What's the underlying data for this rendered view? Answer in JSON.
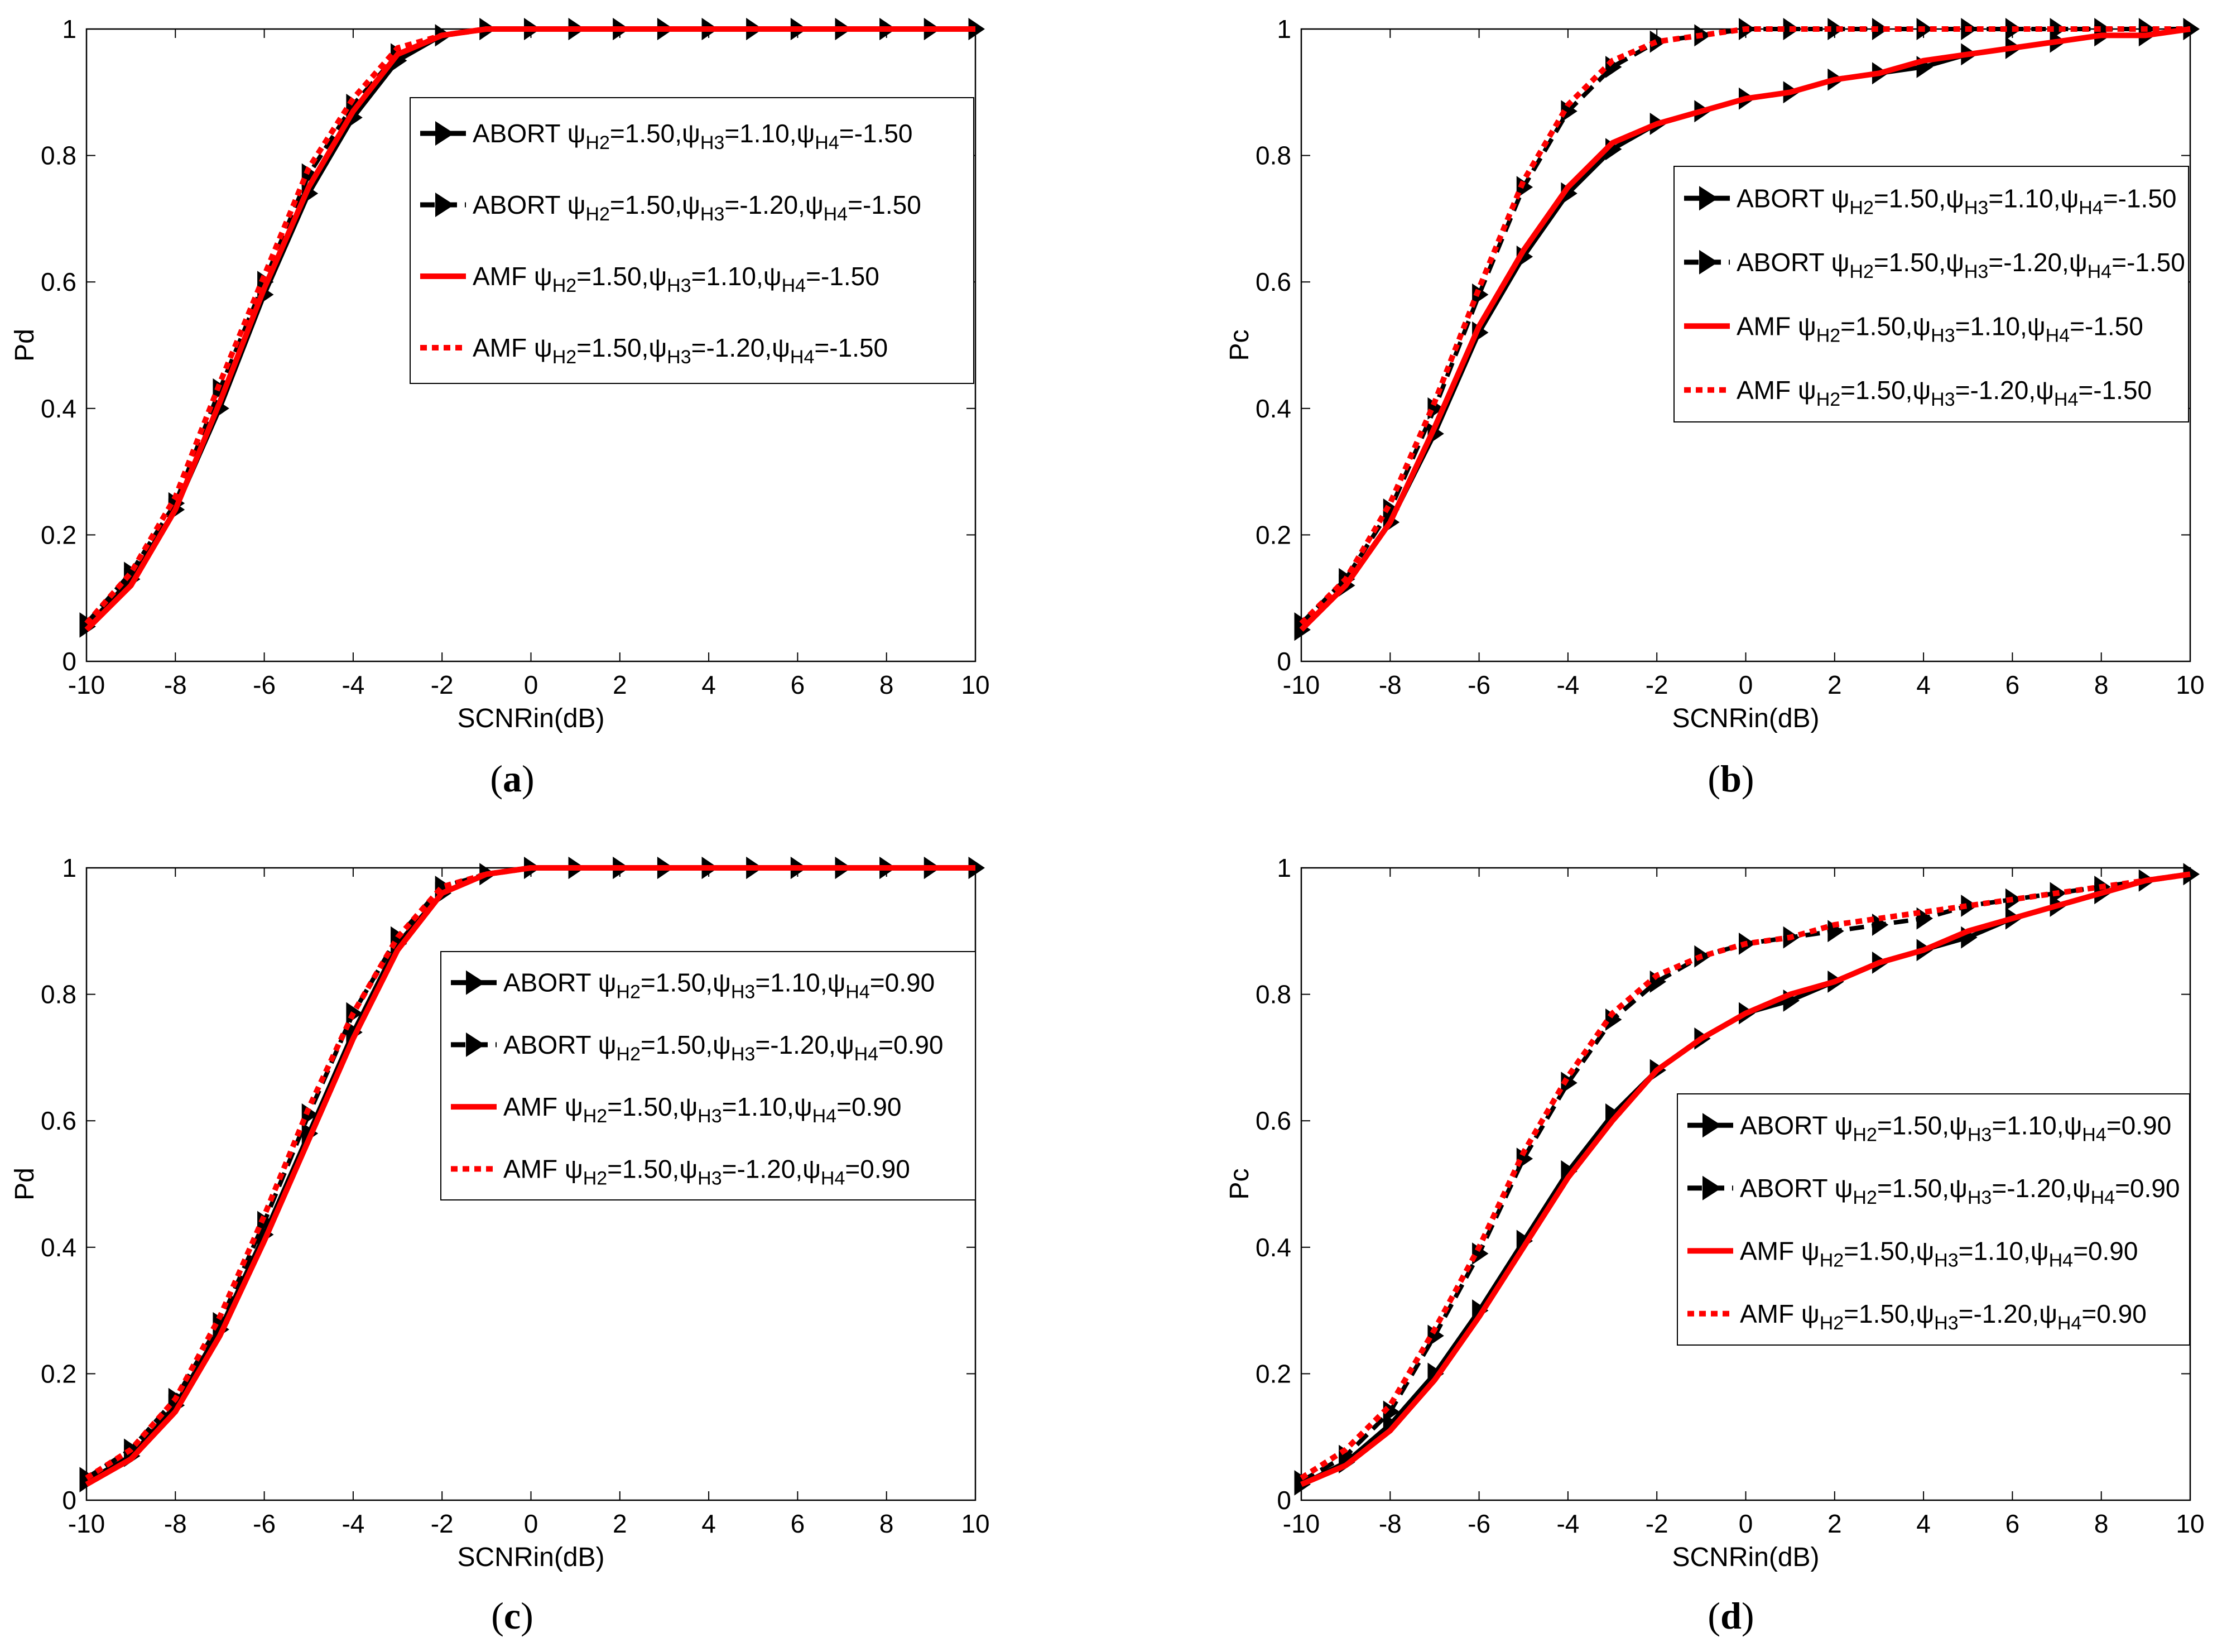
{
  "figure": {
    "x_values": [
      -10,
      -9,
      -8,
      -7,
      -6,
      -5,
      -4,
      -3,
      -2,
      -1,
      0,
      1,
      2,
      3,
      4,
      5,
      6,
      7,
      8,
      9,
      10
    ]
  },
  "chart_data": [
    {
      "type": "line",
      "panel": "a",
      "caption": {
        "open": "(",
        "letter": "a",
        "close": ")"
      },
      "xlabel": "SCNRin(dB)",
      "ylabel": "Pd",
      "xlim": [
        -10,
        10
      ],
      "ylim": [
        0,
        1
      ],
      "xticks": [
        "-10",
        "-8",
        "-6",
        "-4",
        "-2",
        "0",
        "2",
        "4",
        "6",
        "8",
        "10"
      ],
      "yticks": [
        "0",
        "0.2",
        "0.4",
        "0.6",
        "0.8",
        "1"
      ],
      "legend_position": "upper-right",
      "series": [
        {
          "name": "ABORT ψH2=1.50,ψH3=1.10,ψH4=-1.50",
          "prefix": "ABORT",
          "sub": [
            "1.50",
            "1.10",
            "-1.50"
          ],
          "color": "#000000",
          "style": "solid",
          "marker": "triangle-right",
          "values": [
            0.055,
            0.13,
            0.24,
            0.4,
            0.58,
            0.74,
            0.86,
            0.95,
            0.99,
            1.0,
            1.0,
            1.0,
            1.0,
            1.0,
            1.0,
            1.0,
            1.0,
            1.0,
            1.0,
            1.0,
            1.0
          ]
        },
        {
          "name": "ABORT ψH2=1.50,ψH3=-1.20,ψH4=-1.50",
          "prefix": "ABORT",
          "sub": [
            "1.50",
            "-1.20",
            "-1.50"
          ],
          "color": "#000000",
          "style": "dashed",
          "marker": "triangle-right",
          "values": [
            0.06,
            0.14,
            0.25,
            0.43,
            0.6,
            0.77,
            0.88,
            0.96,
            0.99,
            1.0,
            1.0,
            1.0,
            1.0,
            1.0,
            1.0,
            1.0,
            1.0,
            1.0,
            1.0,
            1.0,
            1.0
          ]
        },
        {
          "name": "AMF ψH2=1.50,ψH3=1.10,ψH4=-1.50",
          "prefix": "AMF",
          "sub": [
            "1.50",
            "1.10",
            "-1.50"
          ],
          "color": "#ff0000",
          "style": "solid",
          "marker": "none",
          "values": [
            0.05,
            0.12,
            0.24,
            0.41,
            0.59,
            0.75,
            0.87,
            0.96,
            0.99,
            1.0,
            1.0,
            1.0,
            1.0,
            1.0,
            1.0,
            1.0,
            1.0,
            1.0,
            1.0,
            1.0,
            1.0
          ]
        },
        {
          "name": "AMF ψH2=1.50,ψH3=-1.20,ψH4=-1.50",
          "prefix": "AMF",
          "sub": [
            "1.50",
            "-1.20",
            "-1.50"
          ],
          "color": "#ff0000",
          "style": "dotted",
          "marker": "none",
          "values": [
            0.06,
            0.14,
            0.26,
            0.44,
            0.61,
            0.78,
            0.89,
            0.97,
            0.99,
            1.0,
            1.0,
            1.0,
            1.0,
            1.0,
            1.0,
            1.0,
            1.0,
            1.0,
            1.0,
            1.0,
            1.0
          ]
        }
      ]
    },
    {
      "type": "line",
      "panel": "b",
      "caption": {
        "open": "(",
        "letter": "b",
        "close": ")"
      },
      "xlabel": "SCNRin(dB)",
      "ylabel": "Pc",
      "xlim": [
        -10,
        10
      ],
      "ylim": [
        0,
        1
      ],
      "xticks": [
        "-10",
        "-8",
        "-6",
        "-4",
        "-2",
        "0",
        "2",
        "4",
        "6",
        "8",
        "10"
      ],
      "yticks": [
        "0",
        "0.2",
        "0.4",
        "0.6",
        "0.8",
        "1"
      ],
      "legend_position": "right",
      "series": [
        {
          "name": "ABORT ψH2=1.50,ψH3=1.10,ψH4=-1.50",
          "prefix": "ABORT",
          "sub": [
            "1.50",
            "1.10",
            "-1.50"
          ],
          "color": "#000000",
          "style": "solid",
          "marker": "triangle-right",
          "values": [
            0.05,
            0.12,
            0.22,
            0.36,
            0.52,
            0.64,
            0.74,
            0.81,
            0.85,
            0.87,
            0.89,
            0.9,
            0.92,
            0.93,
            0.94,
            0.96,
            0.97,
            0.98,
            0.99,
            0.99,
            1.0
          ]
        },
        {
          "name": "ABORT ψH2=1.50,ψH3=-1.20,ψH4=-1.50",
          "prefix": "ABORT",
          "sub": [
            "1.50",
            "-1.20",
            "-1.50"
          ],
          "color": "#000000",
          "style": "dashed",
          "marker": "triangle-right",
          "values": [
            0.06,
            0.13,
            0.24,
            0.4,
            0.58,
            0.75,
            0.87,
            0.94,
            0.98,
            0.99,
            1.0,
            1.0,
            1.0,
            1.0,
            1.0,
            1.0,
            1.0,
            1.0,
            1.0,
            1.0,
            1.0
          ]
        },
        {
          "name": "AMF ψH2=1.50,ψH3=1.10,ψH4=-1.50",
          "prefix": "AMF",
          "sub": [
            "1.50",
            "1.10",
            "-1.50"
          ],
          "color": "#ff0000",
          "style": "solid",
          "marker": "none",
          "values": [
            0.05,
            0.12,
            0.22,
            0.37,
            0.53,
            0.65,
            0.75,
            0.82,
            0.85,
            0.87,
            0.89,
            0.9,
            0.92,
            0.93,
            0.95,
            0.96,
            0.97,
            0.98,
            0.99,
            0.99,
            1.0
          ]
        },
        {
          "name": "AMF ψH2=1.50,ψH3=-1.20,ψH4=-1.50",
          "prefix": "AMF",
          "sub": [
            "1.50",
            "-1.20",
            "-1.50"
          ],
          "color": "#ff0000",
          "style": "dotted",
          "marker": "none",
          "values": [
            0.06,
            0.13,
            0.25,
            0.41,
            0.59,
            0.76,
            0.88,
            0.95,
            0.98,
            0.99,
            1.0,
            1.0,
            1.0,
            1.0,
            1.0,
            1.0,
            1.0,
            1.0,
            1.0,
            1.0,
            1.0
          ]
        }
      ]
    },
    {
      "type": "line",
      "panel": "c",
      "caption": {
        "open": "(",
        "letter": "c",
        "close": ")"
      },
      "xlabel": "SCNRin(dB)",
      "ylabel": "Pd",
      "xlim": [
        -10,
        10
      ],
      "ylim": [
        0,
        1
      ],
      "xticks": [
        "-10",
        "-8",
        "-6",
        "-4",
        "-2",
        "0",
        "2",
        "4",
        "6",
        "8",
        "10"
      ],
      "yticks": [
        "0",
        "0.2",
        "0.4",
        "0.6",
        "0.8",
        "1"
      ],
      "legend_position": "upper-right",
      "series": [
        {
          "name": "ABORT ψH2=1.50,ψH3=1.10,ψH4=0.90",
          "prefix": "ABORT",
          "sub": [
            "1.50",
            "1.10",
            "0.90"
          ],
          "color": "#000000",
          "style": "solid",
          "marker": "triangle-right",
          "values": [
            0.03,
            0.07,
            0.15,
            0.27,
            0.42,
            0.58,
            0.74,
            0.88,
            0.96,
            0.99,
            1.0,
            1.0,
            1.0,
            1.0,
            1.0,
            1.0,
            1.0,
            1.0,
            1.0,
            1.0,
            1.0
          ]
        },
        {
          "name": "ABORT ψH2=1.50,ψH3=-1.20,ψH4=0.90",
          "prefix": "ABORT",
          "sub": [
            "1.50",
            "-1.20",
            "0.90"
          ],
          "color": "#000000",
          "style": "dashed",
          "marker": "triangle-right",
          "values": [
            0.035,
            0.08,
            0.16,
            0.28,
            0.44,
            0.61,
            0.77,
            0.89,
            0.97,
            0.99,
            1.0,
            1.0,
            1.0,
            1.0,
            1.0,
            1.0,
            1.0,
            1.0,
            1.0,
            1.0,
            1.0
          ]
        },
        {
          "name": "AMF ψH2=1.50,ψH3=1.10,ψH4=0.90",
          "prefix": "AMF",
          "sub": [
            "1.50",
            "1.10",
            "0.90"
          ],
          "color": "#ff0000",
          "style": "solid",
          "marker": "none",
          "values": [
            0.025,
            0.065,
            0.14,
            0.26,
            0.41,
            0.57,
            0.73,
            0.87,
            0.96,
            0.99,
            1.0,
            1.0,
            1.0,
            1.0,
            1.0,
            1.0,
            1.0,
            1.0,
            1.0,
            1.0,
            1.0
          ]
        },
        {
          "name": "AMF ψH2=1.50,ψH3=-1.20,ψH4=0.90",
          "prefix": "AMF",
          "sub": [
            "1.50",
            "-1.20",
            "0.90"
          ],
          "color": "#ff0000",
          "style": "dotted",
          "marker": "none",
          "values": [
            0.035,
            0.08,
            0.16,
            0.29,
            0.45,
            0.62,
            0.77,
            0.89,
            0.97,
            0.99,
            1.0,
            1.0,
            1.0,
            1.0,
            1.0,
            1.0,
            1.0,
            1.0,
            1.0,
            1.0,
            1.0
          ]
        }
      ]
    },
    {
      "type": "line",
      "panel": "d",
      "caption": {
        "open": "(",
        "letter": "d",
        "close": ")"
      },
      "xlabel": "SCNRin(dB)",
      "ylabel": "Pc",
      "xlim": [
        -10,
        10
      ],
      "ylim": [
        0,
        1
      ],
      "xticks": [
        "-10",
        "-8",
        "-6",
        "-4",
        "-2",
        "0",
        "2",
        "4",
        "6",
        "8",
        "10"
      ],
      "yticks": [
        "0",
        "0.2",
        "0.4",
        "0.6",
        "0.8",
        "1"
      ],
      "legend_position": "lower-right",
      "series": [
        {
          "name": "ABORT ψH2=1.50,ψH3=1.10,ψH4=0.90",
          "prefix": "ABORT",
          "sub": [
            "1.50",
            "1.10",
            "0.90"
          ],
          "color": "#000000",
          "style": "solid",
          "marker": "triangle-right",
          "values": [
            0.025,
            0.06,
            0.12,
            0.2,
            0.3,
            0.41,
            0.52,
            0.61,
            0.68,
            0.73,
            0.77,
            0.79,
            0.82,
            0.85,
            0.87,
            0.89,
            0.92,
            0.94,
            0.96,
            0.98,
            0.99
          ]
        },
        {
          "name": "ABORT ψH2=1.50,ψH3=-1.20,ψH4=0.90",
          "prefix": "ABORT",
          "sub": [
            "1.50",
            "-1.20",
            "0.90"
          ],
          "color": "#000000",
          "style": "dashed",
          "marker": "triangle-right",
          "values": [
            0.03,
            0.07,
            0.14,
            0.26,
            0.39,
            0.54,
            0.66,
            0.76,
            0.82,
            0.86,
            0.88,
            0.89,
            0.9,
            0.91,
            0.92,
            0.94,
            0.95,
            0.96,
            0.97,
            0.98,
            0.99
          ]
        },
        {
          "name": "AMF ψH2=1.50,ψH3=1.10,ψH4=0.90",
          "prefix": "AMF",
          "sub": [
            "1.50",
            "1.10",
            "0.90"
          ],
          "color": "#ff0000",
          "style": "solid",
          "marker": "none",
          "values": [
            0.025,
            0.055,
            0.11,
            0.19,
            0.29,
            0.4,
            0.51,
            0.6,
            0.68,
            0.73,
            0.77,
            0.8,
            0.82,
            0.85,
            0.87,
            0.9,
            0.92,
            0.94,
            0.96,
            0.98,
            0.99
          ]
        },
        {
          "name": "AMF ψH2=1.50,ψH3=-1.20,ψH4=0.90",
          "prefix": "AMF",
          "sub": [
            "1.50",
            "-1.20",
            "0.90"
          ],
          "color": "#ff0000",
          "style": "dotted",
          "marker": "none",
          "values": [
            0.035,
            0.08,
            0.15,
            0.27,
            0.4,
            0.55,
            0.67,
            0.77,
            0.83,
            0.86,
            0.88,
            0.89,
            0.91,
            0.92,
            0.93,
            0.94,
            0.95,
            0.96,
            0.97,
            0.98,
            0.99
          ]
        }
      ]
    }
  ]
}
